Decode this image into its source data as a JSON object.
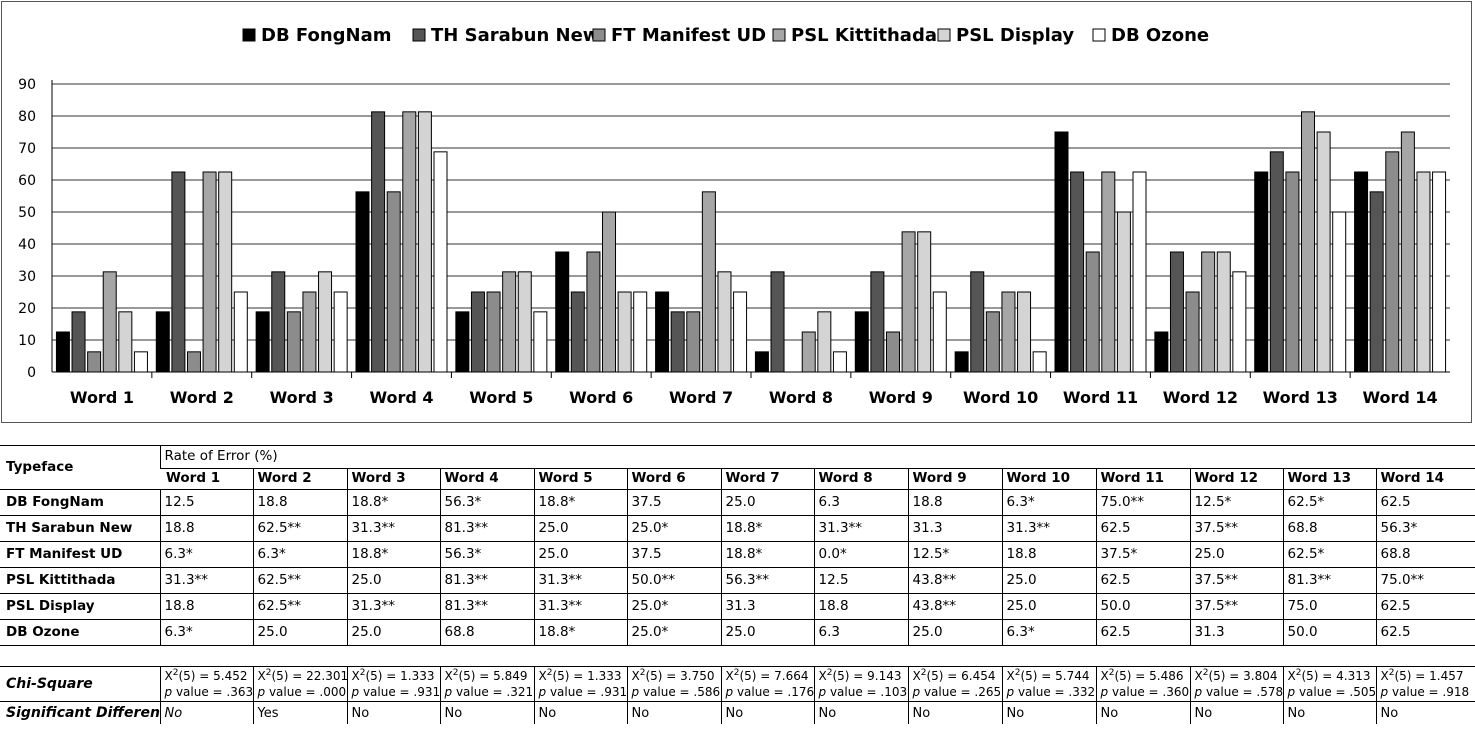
{
  "chart_data": {
    "type": "bar",
    "categories": [
      "Word 1",
      "Word 2",
      "Word 3",
      "Word 4",
      "Word 5",
      "Word 6",
      "Word 7",
      "Word 8",
      "Word 9",
      "Word 10",
      "Word 11",
      "Word 12",
      "Word 13",
      "Word 14"
    ],
    "series": [
      {
        "name": "DB FongNam",
        "color": "#000000",
        "values": [
          12.5,
          18.8,
          18.8,
          56.3,
          18.8,
          37.5,
          25.0,
          6.3,
          18.8,
          6.3,
          75.0,
          12.5,
          62.5,
          62.5
        ]
      },
      {
        "name": "TH Sarabun New",
        "color": "#555555",
        "values": [
          18.8,
          62.5,
          31.3,
          81.3,
          25.0,
          25.0,
          18.8,
          31.3,
          31.3,
          31.3,
          62.5,
          37.5,
          68.8,
          56.3
        ]
      },
      {
        "name": "FT Manifest UD",
        "color": "#8c8c8c",
        "values": [
          6.3,
          6.3,
          18.8,
          56.3,
          25.0,
          37.5,
          18.8,
          0.0,
          12.5,
          18.8,
          37.5,
          25.0,
          62.5,
          68.8
        ]
      },
      {
        "name": "PSL Kittithada",
        "color": "#a6a6a6",
        "values": [
          31.3,
          62.5,
          25.0,
          81.3,
          31.3,
          50.0,
          56.3,
          12.5,
          43.8,
          25.0,
          62.5,
          37.5,
          81.3,
          75.0
        ]
      },
      {
        "name": "PSL Display",
        "color": "#d4d4d4",
        "values": [
          18.8,
          62.5,
          31.3,
          81.3,
          31.3,
          25.0,
          31.3,
          18.8,
          43.8,
          25.0,
          50.0,
          37.5,
          75.0,
          62.5
        ]
      },
      {
        "name": "DB Ozone",
        "color": "#ffffff",
        "values": [
          6.3,
          25.0,
          25.0,
          68.8,
          18.8,
          25.0,
          25.0,
          6.3,
          25.0,
          6.3,
          62.5,
          31.3,
          50.0,
          62.5
        ]
      }
    ],
    "yticks": [
      "0",
      "10",
      "20",
      "30",
      "40",
      "50",
      "60",
      "70",
      "80",
      "90"
    ],
    "ylim": [
      0,
      90
    ],
    "grid": true,
    "legend_position": "top-center"
  },
  "table": {
    "header_label": "Typeface",
    "group_label": "Rate of Error (%)",
    "columns": [
      "Word 1",
      "Word 2",
      "Word 3",
      "Word 4",
      "Word 5",
      "Word 6",
      "Word 7",
      "Word 8",
      "Word 9",
      "Word 10",
      "Word 11",
      "Word 12",
      "Word 13",
      "Word 14"
    ],
    "rows": [
      {
        "name": "DB FongNam",
        "cells": [
          "12.5",
          "18.8",
          "18.8*",
          "56.3*",
          "18.8*",
          "37.5",
          "25.0",
          "6.3",
          "18.8",
          " 6.3*",
          "75.0**",
          "12.5*",
          "62.5*",
          "62.5"
        ]
      },
      {
        "name": "TH Sarabun New",
        "cells": [
          "18.8",
          "62.5**",
          "31.3**",
          "81.3**",
          "25.0",
          "25.0*",
          "18.8*",
          "31.3**",
          "31.3",
          "31.3**",
          "62.5",
          "37.5**",
          "68.8",
          "56.3*"
        ]
      },
      {
        "name": "FT Manifest UD",
        "cells": [
          "6.3*",
          "6.3*",
          "18.8*",
          "56.3*",
          "25.0",
          "37.5",
          "18.8*",
          "0.0*",
          "12.5*",
          "18.8",
          "37.5*",
          "25.0",
          "62.5*",
          "68.8"
        ]
      },
      {
        "name": "PSL Kittithada",
        "cells": [
          "31.3**",
          "62.5**",
          "25.0",
          "81.3**",
          "31.3**",
          "50.0**",
          "56.3**",
          "12.5",
          "43.8**",
          "25.0",
          "62.5",
          "37.5**",
          "81.3**",
          "75.0**"
        ]
      },
      {
        "name": "PSL Display",
        "cells": [
          "18.8",
          "62.5**",
          "31.3**",
          "81.3**",
          "31.3**",
          "25.0*",
          "31.3",
          "18.8",
          "43.8**",
          "25.0",
          "50.0",
          "37.5**",
          "75.0",
          "62.5"
        ]
      },
      {
        "name": "DB Ozone",
        "cells": [
          "6.3*",
          "25.0",
          "25.0",
          "68.8",
          "18.8*",
          "25.0*",
          "25.0",
          "6.3",
          "25.0",
          "6.3*",
          "62.5",
          "31.3",
          "50.0",
          "62.5"
        ]
      }
    ],
    "chi_label": "Chi-Square",
    "chi_prefix": "X",
    "chi_sup": "2",
    "chi": [
      {
        "stat": "(5) = 5.452",
        "p": "value = .363"
      },
      {
        "stat": "(5) = 22.301",
        "p": "value = .000"
      },
      {
        "stat": "(5) = 1.333",
        "p": "value = .931"
      },
      {
        "stat": "(5) = 5.849",
        "p": "value = .321"
      },
      {
        "stat": "(5) = 1.333",
        "p": "value = .931"
      },
      {
        "stat": "(5) = 3.750",
        "p": "value = .586"
      },
      {
        "stat": "(5) = 7.664",
        "p": "value = .176"
      },
      {
        "stat": "(5) = 9.143",
        "p": "value = .103"
      },
      {
        "stat": "(5) = 6.454",
        "p": "value = .265"
      },
      {
        "stat": "(5) = 5.744",
        "p": "value = .332"
      },
      {
        "stat": "(5) = 5.486",
        "p": "value = .360"
      },
      {
        "stat": "(5) = 3.804",
        "p": "value = .578"
      },
      {
        "stat": "(5) = 4.313",
        "p": "value = .505"
      },
      {
        "stat": "(5) = 1.457",
        "p": "value = .918"
      }
    ],
    "p_letter": "p",
    "sig_label": "Significant Difference",
    "sig": [
      "No",
      "Yes",
      "No",
      "No",
      "No",
      "No",
      "No",
      "No",
      "No",
      "No",
      "No",
      "No",
      "No",
      "No"
    ]
  }
}
